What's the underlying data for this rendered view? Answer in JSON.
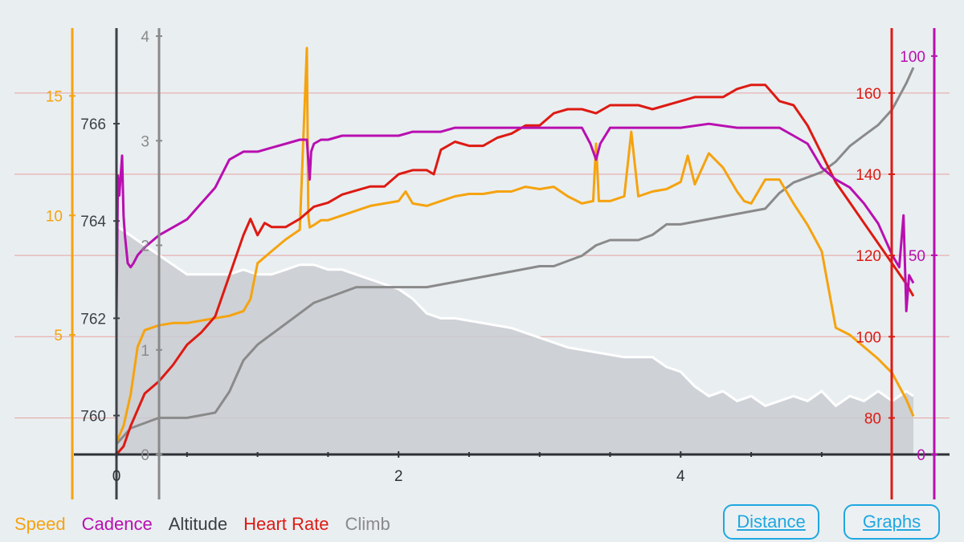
{
  "legend": {
    "speed": "Speed",
    "cadence": "Cadence",
    "altitude": "Altitude",
    "heart_rate": "Heart Rate",
    "climb": "Climb"
  },
  "buttons": {
    "distance": "Distance",
    "graphs": "Graphs"
  },
  "colors": {
    "speed": "#f5a30f",
    "cadence": "#b80fb0",
    "altitude_axis": "#3a3f45",
    "heart_rate": "#dd1a12",
    "climb": "#8a8a8a",
    "altitude_fill": "#c9cbd1",
    "altitude_line": "#ffffff",
    "button": "#1fa7e0",
    "background": "#e9eef1"
  },
  "chart_data": {
    "type": "line",
    "x_axis": {
      "ticks": [
        "0",
        "2",
        "4"
      ],
      "range": [
        0,
        5.65
      ]
    },
    "axes": {
      "speed": {
        "ticks": [
          "5",
          "10",
          "15"
        ],
        "range": [
          0,
          17.5
        ]
      },
      "altitude": {
        "ticks": [
          "760",
          "762",
          "764",
          "766"
        ],
        "range": [
          759.2,
          767.8
        ]
      },
      "climb": {
        "ticks": [
          "0",
          "1",
          "2",
          "3",
          "4"
        ],
        "range": [
          0,
          4
        ]
      },
      "heart_rate": {
        "ticks": [
          "80",
          "100",
          "120",
          "140",
          "160"
        ],
        "range": [
          71,
          174
        ]
      },
      "cadence": {
        "ticks": [
          "0",
          "50",
          "100"
        ],
        "range": [
          0,
          105
        ]
      }
    },
    "series": [
      {
        "name": "Altitude",
        "x": [
          0,
          0.05,
          0.1,
          0.2,
          0.3,
          0.4,
          0.5,
          0.55,
          0.6,
          0.7,
          0.8,
          0.9,
          1.0,
          1.1,
          1.2,
          1.3,
          1.4,
          1.5,
          1.6,
          1.8,
          2.0,
          2.1,
          2.2,
          2.3,
          2.4,
          2.6,
          2.8,
          3.0,
          3.2,
          3.4,
          3.6,
          3.7,
          3.8,
          3.9,
          4.0,
          4.1,
          4.2,
          4.3,
          4.4,
          4.5,
          4.6,
          4.7,
          4.8,
          4.9,
          5.0,
          5.1,
          5.2,
          5.3,
          5.4,
          5.5,
          5.6,
          5.65
        ],
        "values": [
          763.9,
          763.8,
          763.7,
          763.5,
          763.3,
          763.1,
          762.9,
          762.9,
          762.9,
          762.9,
          762.9,
          763.0,
          762.9,
          762.9,
          763.0,
          763.1,
          763.1,
          763.0,
          763.0,
          762.8,
          762.6,
          762.4,
          762.1,
          762.0,
          762.0,
          761.9,
          761.8,
          761.6,
          761.4,
          761.3,
          761.2,
          761.2,
          761.2,
          761.0,
          760.9,
          760.6,
          760.4,
          760.5,
          760.3,
          760.4,
          760.2,
          760.3,
          760.4,
          760.3,
          760.5,
          760.2,
          760.4,
          760.3,
          760.5,
          760.3,
          760.5,
          760.4
        ]
      },
      {
        "name": "Climb",
        "x": [
          0,
          0.1,
          0.2,
          0.3,
          0.5,
          0.7,
          0.8,
          0.9,
          1.0,
          1.1,
          1.2,
          1.3,
          1.4,
          1.5,
          1.6,
          1.7,
          1.8,
          2.0,
          2.2,
          2.4,
          2.6,
          2.8,
          3.0,
          3.1,
          3.2,
          3.3,
          3.4,
          3.5,
          3.7,
          3.8,
          3.9,
          4.0,
          4.2,
          4.4,
          4.6,
          4.7,
          4.8,
          5.0,
          5.1,
          5.2,
          5.3,
          5.4,
          5.5,
          5.6,
          5.65
        ],
        "values": [
          0.1,
          0.25,
          0.3,
          0.35,
          0.35,
          0.4,
          0.6,
          0.9,
          1.05,
          1.15,
          1.25,
          1.35,
          1.45,
          1.5,
          1.55,
          1.6,
          1.6,
          1.6,
          1.6,
          1.65,
          1.7,
          1.75,
          1.8,
          1.8,
          1.85,
          1.9,
          2.0,
          2.05,
          2.05,
          2.1,
          2.2,
          2.2,
          2.25,
          2.3,
          2.35,
          2.5,
          2.6,
          2.7,
          2.8,
          2.95,
          3.05,
          3.15,
          3.3,
          3.55,
          3.7
        ]
      },
      {
        "name": "Speed",
        "x": [
          0,
          0.05,
          0.1,
          0.15,
          0.2,
          0.3,
          0.4,
          0.5,
          0.6,
          0.7,
          0.8,
          0.9,
          0.95,
          1.0,
          1.1,
          1.2,
          1.3,
          1.35,
          1.36,
          1.37,
          1.4,
          1.45,
          1.5,
          1.6,
          1.7,
          1.8,
          1.9,
          2.0,
          2.05,
          2.1,
          2.2,
          2.3,
          2.4,
          2.5,
          2.6,
          2.7,
          2.8,
          2.9,
          3.0,
          3.1,
          3.2,
          3.3,
          3.38,
          3.4,
          3.42,
          3.5,
          3.6,
          3.65,
          3.7,
          3.8,
          3.9,
          4.0,
          4.05,
          4.1,
          4.2,
          4.3,
          4.4,
          4.45,
          4.5,
          4.6,
          4.7,
          4.8,
          4.9,
          5.0,
          5.1,
          5.2,
          5.3,
          5.4,
          5.5,
          5.6,
          5.65
        ],
        "values": [
          0.5,
          1.2,
          2.5,
          4.5,
          5.2,
          5.4,
          5.5,
          5.5,
          5.6,
          5.7,
          5.8,
          6.0,
          6.5,
          8.0,
          8.5,
          9.0,
          9.4,
          17.0,
          10.0,
          9.5,
          9.6,
          9.8,
          9.8,
          10.0,
          10.2,
          10.4,
          10.5,
          10.6,
          11.0,
          10.5,
          10.4,
          10.6,
          10.8,
          10.9,
          10.9,
          11.0,
          11.0,
          11.2,
          11.1,
          11.2,
          10.8,
          10.5,
          10.6,
          13.0,
          10.6,
          10.6,
          10.8,
          13.5,
          10.8,
          11.0,
          11.1,
          11.4,
          12.5,
          11.3,
          12.6,
          12.0,
          11.0,
          10.6,
          10.5,
          11.5,
          11.5,
          10.5,
          9.6,
          8.5,
          5.3,
          5.0,
          4.5,
          4.0,
          3.4,
          2.3,
          1.6
        ]
      },
      {
        "name": "Heart Rate",
        "x": [
          0,
          0.05,
          0.1,
          0.2,
          0.3,
          0.4,
          0.5,
          0.6,
          0.7,
          0.8,
          0.9,
          0.95,
          1.0,
          1.05,
          1.1,
          1.2,
          1.3,
          1.4,
          1.5,
          1.6,
          1.7,
          1.8,
          1.9,
          2.0,
          2.1,
          2.2,
          2.25,
          2.3,
          2.4,
          2.5,
          2.6,
          2.7,
          2.8,
          2.9,
          3.0,
          3.1,
          3.2,
          3.3,
          3.4,
          3.5,
          3.6,
          3.7,
          3.8,
          3.9,
          4.0,
          4.1,
          4.2,
          4.3,
          4.4,
          4.5,
          4.6,
          4.7,
          4.8,
          4.9,
          5.0,
          5.1,
          5.2,
          5.3,
          5.4,
          5.5,
          5.6,
          5.65
        ],
        "values": [
          71,
          73,
          78,
          86,
          89,
          93,
          98,
          101,
          105,
          115,
          125,
          129,
          125,
          128,
          127,
          127,
          129,
          132,
          133,
          135,
          136,
          137,
          137,
          140,
          141,
          141,
          140,
          146,
          148,
          147,
          147,
          149,
          150,
          152,
          152,
          155,
          156,
          156,
          155,
          157,
          157,
          157,
          156,
          157,
          158,
          159,
          159,
          159,
          161,
          162,
          162,
          158,
          157,
          152,
          145,
          138,
          133,
          128,
          123,
          118,
          113,
          110
        ]
      },
      {
        "name": "Cadence",
        "x": [
          0,
          0.01,
          0.02,
          0.04,
          0.05,
          0.06,
          0.08,
          0.1,
          0.12,
          0.15,
          0.2,
          0.3,
          0.4,
          0.5,
          0.6,
          0.7,
          0.8,
          0.9,
          1.0,
          1.1,
          1.2,
          1.3,
          1.35,
          1.37,
          1.38,
          1.4,
          1.45,
          1.5,
          1.6,
          1.7,
          1.8,
          1.9,
          2.0,
          2.1,
          2.2,
          2.3,
          2.4,
          2.6,
          2.8,
          3.0,
          3.2,
          3.3,
          3.36,
          3.4,
          3.43,
          3.5,
          3.6,
          3.8,
          4.0,
          4.2,
          4.4,
          4.6,
          4.7,
          4.8,
          4.9,
          5.0,
          5.1,
          5.2,
          5.3,
          5.4,
          5.5,
          5.55,
          5.58,
          5.6,
          5.62,
          5.65
        ],
        "values": [
          35,
          70,
          65,
          75,
          60,
          55,
          48,
          47,
          48,
          50,
          52,
          55,
          57,
          59,
          63,
          67,
          74,
          76,
          76,
          77,
          78,
          79,
          79,
          69,
          76,
          78,
          79,
          79,
          80,
          80,
          80,
          80,
          80,
          81,
          81,
          81,
          82,
          82,
          82,
          82,
          82,
          82,
          78,
          74,
          78,
          82,
          82,
          82,
          82,
          83,
          82,
          82,
          82,
          80,
          78,
          72,
          69,
          67,
          63,
          58,
          50,
          47,
          60,
          36,
          45,
          43
        ]
      }
    ]
  }
}
